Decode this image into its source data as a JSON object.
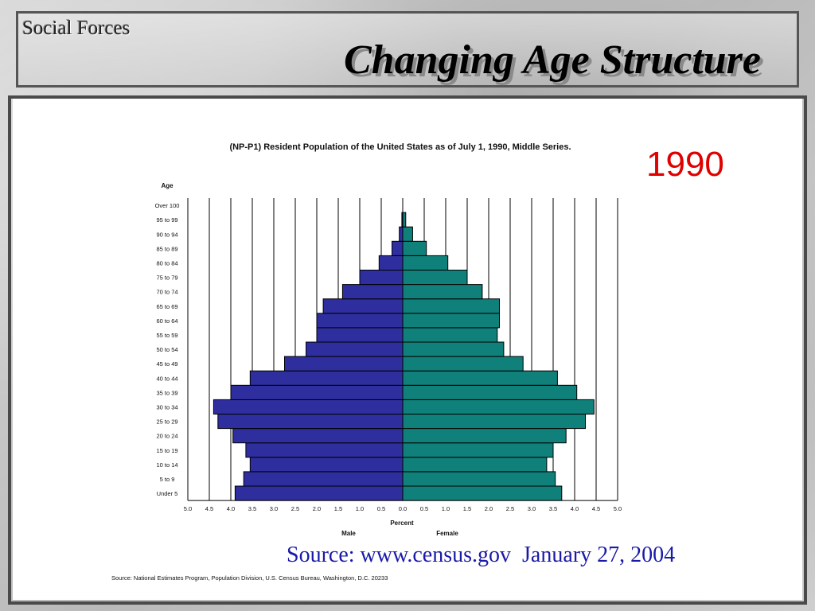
{
  "slide": {
    "section_label": "Social Forces",
    "title": "Changing Age Structure",
    "year": "1990",
    "source_url": "Source: www.census.gov  January 27, 2004"
  },
  "colors": {
    "male": "#2e2e9e",
    "female": "#10807a",
    "year": "#e00000",
    "source": "#1a1aa8"
  },
  "chart_data": {
    "type": "bar",
    "orientation": "horizontal-population-pyramid",
    "title": "(NP-P1)  Resident Population of the United States as of July 1, 1990, Middle Series.",
    "ylabel": "Age",
    "xlabel": "Percent",
    "male_label": "Male",
    "female_label": "Female",
    "source_note": "Source:  National Estimates Program, Population Division, U.S. Census Bureau, Washington, D.C. 20233",
    "xlim": [
      -5.0,
      5.0
    ],
    "x_ticks": [
      "5.0",
      "4.5",
      "4.0",
      "3.5",
      "3.0",
      "2.5",
      "2.0",
      "1.5",
      "1.0",
      "0.5",
      "0.0",
      "0.5",
      "1.0",
      "1.5",
      "2.0",
      "2.5",
      "3.0",
      "3.5",
      "4.0",
      "4.5",
      "5.0"
    ],
    "grid": true,
    "categories": [
      "Under 5",
      "5 to 9",
      "10 to 14",
      "15 to 19",
      "20 to 24",
      "25 to 29",
      "30 to 34",
      "35 to 39",
      "40 to 44",
      "45 to 49",
      "50 to 54",
      "55 to 59",
      "60 to 64",
      "65 to 69",
      "70 to 74",
      "75 to 79",
      "80 to 84",
      "85 to 89",
      "90 to 94",
      "95 to 99",
      "Over 100"
    ],
    "series": [
      {
        "name": "Male",
        "values": [
          3.9,
          3.7,
          3.55,
          3.65,
          3.95,
          4.3,
          4.4,
          4.0,
          3.55,
          2.75,
          2.25,
          2.0,
          2.0,
          1.85,
          1.4,
          1.0,
          0.55,
          0.25,
          0.08,
          0.02,
          0.0
        ]
      },
      {
        "name": "Female",
        "values": [
          3.7,
          3.55,
          3.35,
          3.5,
          3.8,
          4.25,
          4.45,
          4.05,
          3.6,
          2.8,
          2.35,
          2.2,
          2.25,
          2.25,
          1.85,
          1.5,
          1.05,
          0.55,
          0.23,
          0.07,
          0.0
        ]
      }
    ]
  }
}
